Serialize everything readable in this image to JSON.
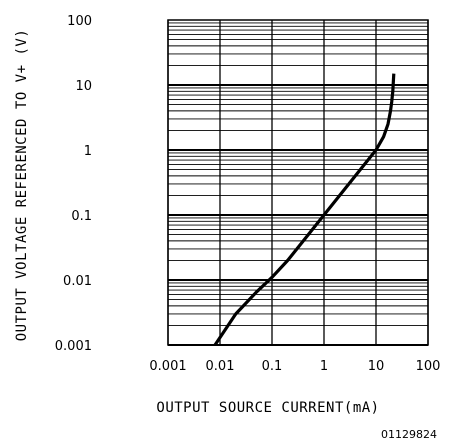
{
  "chart_data": {
    "type": "line",
    "xlabel": "OUTPUT SOURCE CURRENT(mA)",
    "ylabel": "OUTPUT VOLTAGE REFERENCED TO V+ (V)",
    "x_scale": "log",
    "y_scale": "log",
    "xlim": [
      0.001,
      100
    ],
    "ylim": [
      0.001,
      100
    ],
    "x_ticks": [
      "0.001",
      "0.01",
      "0.1",
      "1",
      "10",
      "100"
    ],
    "y_ticks": [
      "0.001",
      "0.01",
      "0.1",
      "1",
      "10",
      "100"
    ],
    "grid": true,
    "series": [
      {
        "x": [
          0.008,
          0.02,
          0.05,
          0.1,
          0.2,
          0.5,
          1,
          2,
          5,
          10,
          14,
          17,
          19,
          20,
          21,
          21.5,
          22
        ],
        "y": [
          0.001,
          0.003,
          0.0065,
          0.011,
          0.02,
          0.05,
          0.1,
          0.2,
          0.5,
          1,
          1.6,
          2.5,
          4,
          5.5,
          8,
          11,
          15
        ]
      }
    ],
    "figure_id": "01129824"
  }
}
